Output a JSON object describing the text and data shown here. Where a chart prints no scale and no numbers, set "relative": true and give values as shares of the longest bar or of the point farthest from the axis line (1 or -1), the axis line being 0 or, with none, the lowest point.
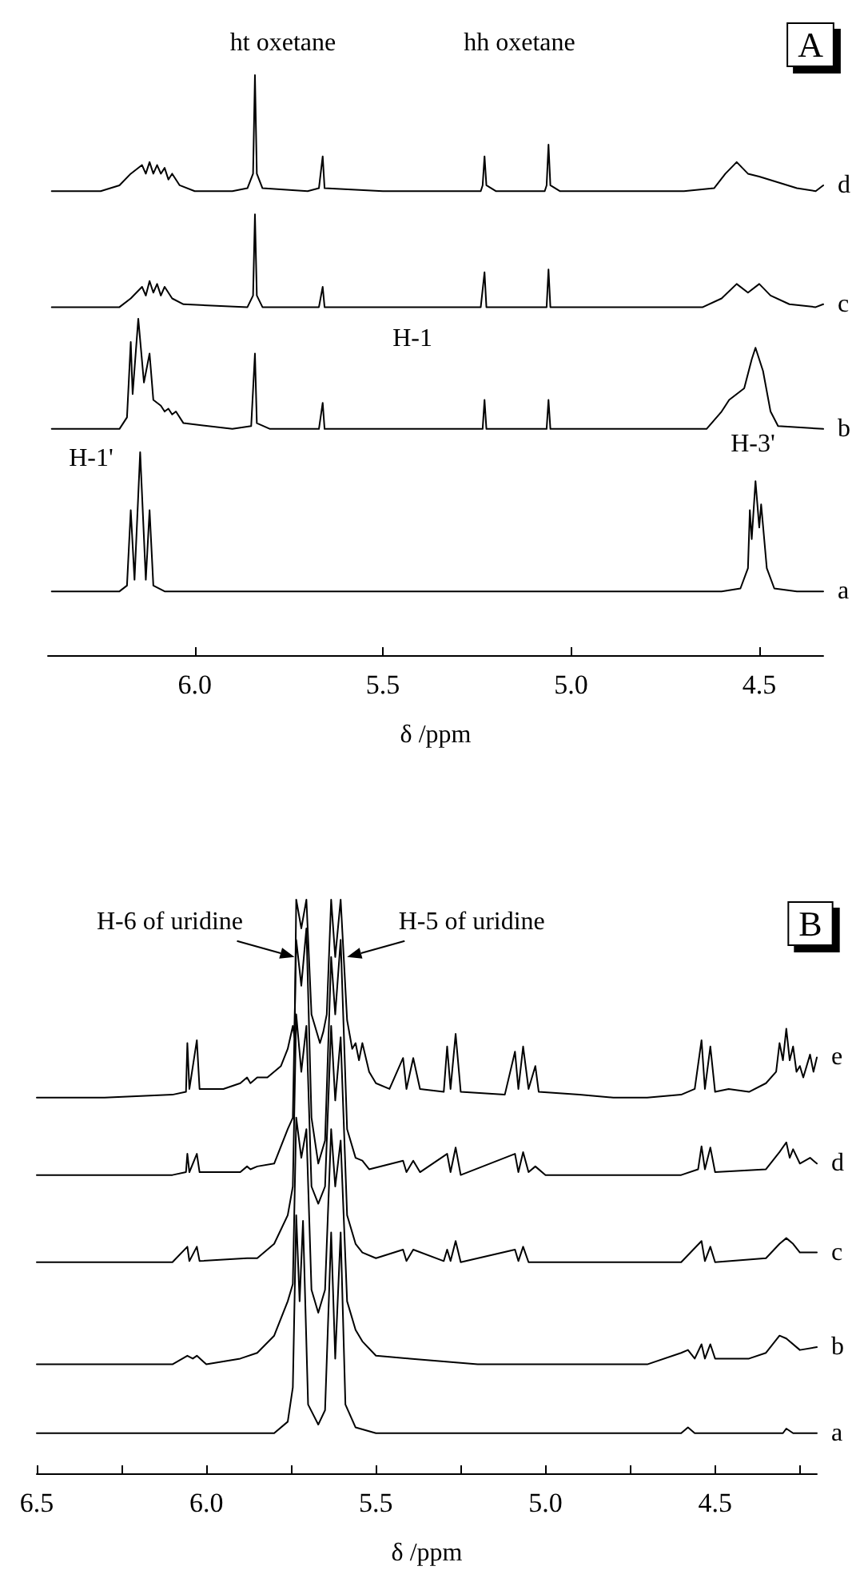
{
  "chart_data": [
    {
      "type": "line",
      "relative": true,
      "xlabel": "δ /ppm",
      "xlim": [
        6.39,
        4.33
      ],
      "xticks": [
        {
          "value": 6,
          "label": "6.0"
        },
        {
          "value": 5.5,
          "label": "5.5"
        },
        {
          "value": 5,
          "label": "5.0"
        },
        {
          "value": 4.5,
          "label": "4.5"
        }
      ],
      "tick_labels": "x",
      "annotations": [
        "A",
        "ht oxetane",
        "hh oxetane",
        "H-1",
        "H-1'",
        "H-3'"
      ],
      "series": [
        {
          "name": "d",
          "color": "#000000",
          "x": [
            6.38,
            6.25,
            6.2,
            6.17,
            6.14,
            6.13,
            6.12,
            6.11,
            6.1,
            6.09,
            6.08,
            6.07,
            6.06,
            6.04,
            6.0,
            5.9,
            5.86,
            5.845,
            5.84,
            5.835,
            5.82,
            5.7,
            5.67,
            5.66,
            5.655,
            5.5,
            5.24,
            5.235,
            5.23,
            5.225,
            5.2,
            5.07,
            5.065,
            5.06,
            5.055,
            5.03,
            4.7,
            4.62,
            4.59,
            4.56,
            4.53,
            4.5,
            4.45,
            4.4,
            4.35,
            4.33
          ],
          "values": [
            0.8,
            0.8,
            0.81,
            0.83,
            0.845,
            0.83,
            0.85,
            0.83,
            0.845,
            0.83,
            0.84,
            0.82,
            0.83,
            0.81,
            0.8,
            0.8,
            0.805,
            0.83,
            1.0,
            0.83,
            0.805,
            0.8,
            0.805,
            0.86,
            0.805,
            0.8,
            0.8,
            0.81,
            0.86,
            0.81,
            0.8,
            0.8,
            0.81,
            0.88,
            0.81,
            0.8,
            0.8,
            0.805,
            0.83,
            0.85,
            0.83,
            0.825,
            0.815,
            0.805,
            0.8,
            0.81
          ]
        },
        {
          "name": "c",
          "color": "#000000",
          "x": [
            6.38,
            6.2,
            6.17,
            6.14,
            6.13,
            6.12,
            6.11,
            6.1,
            6.09,
            6.08,
            6.06,
            6.03,
            5.86,
            5.845,
            5.84,
            5.835,
            5.82,
            5.67,
            5.66,
            5.655,
            5.24,
            5.23,
            5.225,
            5.065,
            5.06,
            5.055,
            4.65,
            4.6,
            4.56,
            4.53,
            4.5,
            4.47,
            4.42,
            4.35,
            4.33
          ],
          "values": [
            0.6,
            0.6,
            0.615,
            0.635,
            0.62,
            0.645,
            0.625,
            0.64,
            0.62,
            0.635,
            0.615,
            0.605,
            0.6,
            0.62,
            0.76,
            0.62,
            0.6,
            0.6,
            0.635,
            0.6,
            0.6,
            0.66,
            0.6,
            0.6,
            0.665,
            0.6,
            0.6,
            0.615,
            0.64,
            0.625,
            0.64,
            0.62,
            0.605,
            0.6,
            0.605
          ]
        },
        {
          "name": "b",
          "color": "#000000",
          "x": [
            6.38,
            6.2,
            6.18,
            6.17,
            6.165,
            6.15,
            6.135,
            6.12,
            6.11,
            6.09,
            6.08,
            6.07,
            6.06,
            6.05,
            6.03,
            5.9,
            5.85,
            5.84,
            5.835,
            5.8,
            5.67,
            5.66,
            5.655,
            5.235,
            5.23,
            5.225,
            5.065,
            5.06,
            5.055,
            4.64,
            4.6,
            4.58,
            4.56,
            4.54,
            4.52,
            4.51,
            4.49,
            4.47,
            4.45,
            4.33
          ],
          "values": [
            0.39,
            0.39,
            0.41,
            0.54,
            0.45,
            0.58,
            0.47,
            0.52,
            0.44,
            0.43,
            0.42,
            0.425,
            0.415,
            0.42,
            0.4,
            0.39,
            0.395,
            0.52,
            0.4,
            0.39,
            0.39,
            0.435,
            0.39,
            0.39,
            0.44,
            0.39,
            0.39,
            0.44,
            0.39,
            0.39,
            0.42,
            0.44,
            0.45,
            0.46,
            0.51,
            0.53,
            0.49,
            0.42,
            0.395,
            0.39
          ]
        },
        {
          "name": "a",
          "color": "#000000",
          "x": [
            6.38,
            6.2,
            6.18,
            6.17,
            6.16,
            6.145,
            6.13,
            6.12,
            6.11,
            6.08,
            4.6,
            4.55,
            4.53,
            4.525,
            4.52,
            4.51,
            4.5,
            4.495,
            4.48,
            4.46,
            4.4,
            4.33
          ],
          "values": [
            0.11,
            0.11,
            0.12,
            0.25,
            0.13,
            0.35,
            0.13,
            0.25,
            0.12,
            0.11,
            0.11,
            0.115,
            0.15,
            0.25,
            0.2,
            0.3,
            0.22,
            0.26,
            0.15,
            0.115,
            0.11,
            0.11
          ]
        }
      ]
    },
    {
      "type": "line",
      "relative": true,
      "xlabel": "δ /ppm",
      "xlim": [
        6.5,
        4.2
      ],
      "xticks": [
        {
          "value": 6.5,
          "label": "6.5"
        },
        {
          "value": 6.25,
          "label": null
        },
        {
          "value": 6,
          "label": "6.0"
        },
        {
          "value": 5.75,
          "label": null
        },
        {
          "value": 5.5,
          "label": "5.5"
        },
        {
          "value": 5.25,
          "label": null
        },
        {
          "value": 5,
          "label": "5.0"
        },
        {
          "value": 4.75,
          "label": null
        },
        {
          "value": 4.5,
          "label": "4.5"
        },
        {
          "value": 4.25,
          "label": null
        }
      ],
      "tick_labels": "x",
      "annotations": [
        "B",
        {
          "text": "H-6 of uridine",
          "x": 5.74,
          "y": 0.9
        },
        {
          "text": "H-5 of uridine",
          "x": 5.585,
          "y": 0.9
        }
      ],
      "series": [
        {
          "name": "e",
          "color": "#000000",
          "x": [
            6.5,
            6.3,
            6.1,
            6.06,
            6.056,
            6.05,
            6.028,
            6.02,
            5.95,
            5.9,
            5.88,
            5.87,
            5.85,
            5.82,
            5.78,
            5.76,
            5.745,
            5.74,
            5.735,
            5.72,
            5.705,
            5.69,
            5.665,
            5.655,
            5.645,
            5.632,
            5.62,
            5.604,
            5.585,
            5.57,
            5.56,
            5.55,
            5.54,
            5.52,
            5.5,
            5.46,
            5.42,
            5.41,
            5.39,
            5.37,
            5.3,
            5.29,
            5.28,
            5.265,
            5.25,
            5.12,
            5.09,
            5.08,
            5.066,
            5.05,
            5.03,
            5.02,
            4.9,
            4.8,
            4.7,
            4.6,
            4.56,
            4.54,
            4.53,
            4.514,
            4.5,
            4.46,
            4.4,
            4.35,
            4.32,
            4.31,
            4.3,
            4.29,
            4.28,
            4.27,
            4.26,
            4.25,
            4.24,
            4.22,
            4.21,
            4.2
          ],
          "values": [
            0.655,
            0.655,
            0.66,
            0.665,
            0.75,
            0.67,
            0.755,
            0.67,
            0.67,
            0.68,
            0.69,
            0.68,
            0.69,
            0.69,
            0.71,
            0.74,
            0.78,
            0.76,
            1.0,
            0.95,
            1.0,
            0.8,
            0.75,
            0.77,
            0.8,
            1.0,
            0.9,
            1.0,
            0.79,
            0.74,
            0.75,
            0.72,
            0.75,
            0.7,
            0.68,
            0.67,
            0.724,
            0.67,
            0.724,
            0.67,
            0.665,
            0.744,
            0.67,
            0.766,
            0.665,
            0.66,
            0.735,
            0.67,
            0.744,
            0.67,
            0.71,
            0.665,
            0.66,
            0.655,
            0.655,
            0.66,
            0.67,
            0.755,
            0.67,
            0.744,
            0.665,
            0.67,
            0.665,
            0.68,
            0.7,
            0.75,
            0.72,
            0.775,
            0.72,
            0.744,
            0.7,
            0.71,
            0.69,
            0.73,
            0.7,
            0.725
          ]
        },
        {
          "name": "d",
          "color": "#000000",
          "x": [
            6.5,
            6.1,
            6.06,
            6.056,
            6.05,
            6.028,
            6.02,
            5.9,
            5.88,
            5.87,
            5.85,
            5.8,
            5.76,
            5.745,
            5.735,
            5.72,
            5.705,
            5.69,
            5.67,
            5.65,
            5.632,
            5.62,
            5.604,
            5.585,
            5.56,
            5.54,
            5.52,
            5.42,
            5.41,
            5.39,
            5.37,
            5.29,
            5.28,
            5.265,
            5.25,
            5.09,
            5.08,
            5.066,
            5.05,
            5.03,
            5.0,
            4.6,
            4.55,
            4.54,
            4.53,
            4.514,
            4.5,
            4.35,
            4.31,
            4.29,
            4.28,
            4.27,
            4.25,
            4.22,
            4.2
          ],
          "values": [
            0.52,
            0.52,
            0.525,
            0.557,
            0.525,
            0.557,
            0.525,
            0.525,
            0.535,
            0.53,
            0.535,
            0.54,
            0.6,
            0.62,
            0.93,
            0.85,
            0.95,
            0.62,
            0.54,
            0.58,
            0.9,
            0.8,
            0.93,
            0.6,
            0.55,
            0.545,
            0.53,
            0.545,
            0.525,
            0.545,
            0.525,
            0.557,
            0.525,
            0.568,
            0.52,
            0.557,
            0.525,
            0.56,
            0.525,
            0.535,
            0.52,
            0.52,
            0.53,
            0.57,
            0.53,
            0.568,
            0.525,
            0.53,
            0.56,
            0.577,
            0.55,
            0.565,
            0.54,
            0.55,
            0.54
          ]
        },
        {
          "name": "c",
          "color": "#000000",
          "x": [
            6.5,
            6.1,
            6.056,
            6.05,
            6.028,
            6.02,
            5.88,
            5.85,
            5.8,
            5.76,
            5.745,
            5.735,
            5.72,
            5.705,
            5.69,
            5.67,
            5.65,
            5.632,
            5.62,
            5.604,
            5.585,
            5.56,
            5.54,
            5.5,
            5.42,
            5.41,
            5.39,
            5.3,
            5.29,
            5.28,
            5.265,
            5.25,
            5.09,
            5.08,
            5.066,
            5.05,
            4.6,
            4.54,
            4.53,
            4.514,
            4.5,
            4.35,
            4.31,
            4.29,
            4.27,
            4.25,
            4.2
          ],
          "values": [
            0.368,
            0.368,
            0.395,
            0.37,
            0.395,
            0.37,
            0.375,
            0.375,
            0.4,
            0.45,
            0.5,
            0.8,
            0.7,
            0.78,
            0.5,
            0.47,
            0.5,
            0.78,
            0.65,
            0.76,
            0.45,
            0.4,
            0.385,
            0.375,
            0.39,
            0.37,
            0.39,
            0.37,
            0.39,
            0.37,
            0.405,
            0.368,
            0.39,
            0.37,
            0.395,
            0.368,
            0.368,
            0.405,
            0.37,
            0.395,
            0.368,
            0.375,
            0.4,
            0.41,
            0.4,
            0.385,
            0.385
          ]
        },
        {
          "name": "b",
          "color": "#000000",
          "x": [
            6.5,
            6.1,
            6.056,
            6.04,
            6.028,
            6.0,
            5.9,
            5.85,
            5.8,
            5.76,
            5.745,
            5.735,
            5.72,
            5.705,
            5.69,
            5.67,
            5.65,
            5.632,
            5.62,
            5.604,
            5.585,
            5.56,
            5.54,
            5.5,
            5.4,
            5.3,
            5.2,
            5.0,
            4.7,
            4.6,
            4.58,
            4.56,
            4.54,
            4.53,
            4.514,
            4.5,
            4.4,
            4.35,
            4.31,
            4.29,
            4.25,
            4.2
          ],
          "values": [
            0.19,
            0.19,
            0.205,
            0.2,
            0.205,
            0.19,
            0.2,
            0.21,
            0.24,
            0.3,
            0.33,
            0.62,
            0.55,
            0.6,
            0.32,
            0.28,
            0.32,
            0.6,
            0.5,
            0.58,
            0.3,
            0.25,
            0.23,
            0.205,
            0.2,
            0.195,
            0.19,
            0.19,
            0.19,
            0.21,
            0.215,
            0.2,
            0.225,
            0.2,
            0.225,
            0.2,
            0.2,
            0.21,
            0.24,
            0.235,
            0.215,
            0.22
          ]
        },
        {
          "name": "a",
          "color": "#000000",
          "x": [
            6.5,
            5.8,
            5.76,
            5.745,
            5.735,
            5.725,
            5.715,
            5.7,
            5.67,
            5.65,
            5.632,
            5.62,
            5.604,
            5.59,
            5.56,
            5.5,
            4.6,
            4.58,
            4.56,
            4.3,
            4.29,
            4.27,
            4.2
          ],
          "values": [
            0.07,
            0.07,
            0.09,
            0.15,
            0.45,
            0.3,
            0.44,
            0.12,
            0.085,
            0.11,
            0.42,
            0.2,
            0.42,
            0.12,
            0.08,
            0.07,
            0.07,
            0.08,
            0.07,
            0.07,
            0.078,
            0.07,
            0.07
          ]
        }
      ]
    }
  ]
}
